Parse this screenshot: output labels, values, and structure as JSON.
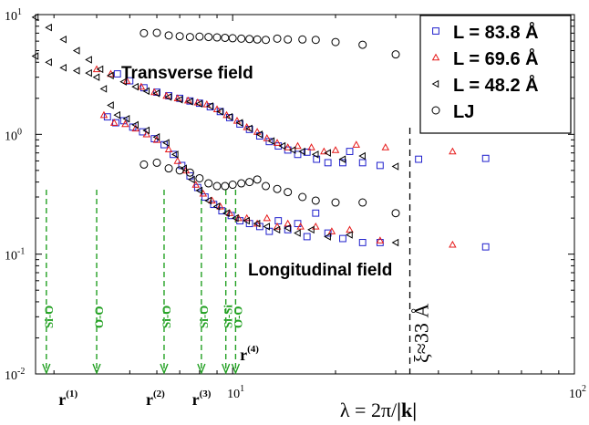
{
  "chart_data": {
    "type": "scatter",
    "x_scale": "log",
    "y_scale": "log",
    "xlim": [
      2.65,
      100
    ],
    "ylim": [
      0.01,
      10
    ],
    "grid": false,
    "legend_placement": "top-right",
    "xlabel_prefix": "λ = 2π/",
    "xlabel_bold": "|k|",
    "x_tick_labels": [
      {
        "value": 10,
        "mantissa": "10",
        "exp": "1"
      },
      {
        "value": 100,
        "mantissa": "10",
        "exp": "2"
      }
    ],
    "y_tick_labels": [
      {
        "value": 0.01,
        "mantissa": "10",
        "exp": "-2"
      },
      {
        "value": 0.1,
        "mantissa": "10",
        "exp": "-1"
      },
      {
        "value": 1,
        "mantissa": "10",
        "exp": "0"
      },
      {
        "value": 10,
        "mantissa": "10",
        "exp": "1"
      }
    ],
    "annotations": {
      "transverse": "Transverse field",
      "longitudinal": "Longitudinal field",
      "xi_label": "ξ≈33 Å",
      "xi_x": 33
    },
    "distance_markers": [
      {
        "label": "Si-O",
        "x": 2.85
      },
      {
        "label": "O-O",
        "x": 4.0
      },
      {
        "label": "Si-O",
        "x": 6.3
      },
      {
        "label": "Si-O",
        "x": 8.1
      },
      {
        "label": "Si-Si",
        "x": 9.55
      },
      {
        "label": "O-O",
        "x": 10.2
      }
    ],
    "r_labels": [
      {
        "base": "r",
        "sup": "(1)",
        "x": 3.5
      },
      {
        "base": "r",
        "sup": "(2)",
        "x": 6.3
      },
      {
        "base": "r",
        "sup": "(3)",
        "x": 8.6
      },
      {
        "base": "r",
        "sup": "(4)",
        "x": 10.5
      }
    ],
    "series": [
      {
        "name": "L = 83.8 Å",
        "marker": "square",
        "color": "#1f1fcc",
        "transverse": [
          [
            4.6,
            3.2
          ],
          [
            5.0,
            2.8
          ],
          [
            5.5,
            2.45
          ],
          [
            6.0,
            2.25
          ],
          [
            6.5,
            2.1
          ],
          [
            7.0,
            2.0
          ],
          [
            7.5,
            1.9
          ],
          [
            8.0,
            1.82
          ],
          [
            8.6,
            1.7
          ],
          [
            9.2,
            1.55
          ],
          [
            9.8,
            1.38
          ],
          [
            10.5,
            1.22
          ],
          [
            11.2,
            1.1
          ],
          [
            12.0,
            0.97
          ],
          [
            12.8,
            0.87
          ],
          [
            13.6,
            0.8
          ],
          [
            14.5,
            0.74
          ],
          [
            15.5,
            0.68
          ],
          [
            16.5,
            0.71
          ],
          [
            17.6,
            0.62
          ],
          [
            19.0,
            0.58
          ],
          [
            21.0,
            0.58
          ],
          [
            22.0,
            0.72
          ],
          [
            24.0,
            0.58
          ],
          [
            27.0,
            0.55
          ],
          [
            35.0,
            0.62
          ],
          [
            55.0,
            0.63
          ]
        ],
        "longitudinal": [
          [
            4.3,
            1.4
          ],
          [
            4.55,
            1.25
          ],
          [
            4.8,
            1.3
          ],
          [
            5.1,
            1.15
          ],
          [
            5.45,
            1.05
          ],
          [
            5.9,
            0.92
          ],
          [
            6.3,
            0.82
          ],
          [
            6.7,
            0.68
          ],
          [
            7.1,
            0.55
          ],
          [
            7.5,
            0.45
          ],
          [
            7.9,
            0.36
          ],
          [
            8.3,
            0.3
          ],
          [
            8.8,
            0.26
          ],
          [
            9.3,
            0.23
          ],
          [
            9.9,
            0.21
          ],
          [
            10.5,
            0.19
          ],
          [
            11.2,
            0.18
          ],
          [
            12.0,
            0.17
          ],
          [
            12.8,
            0.155
          ],
          [
            13.6,
            0.19
          ],
          [
            14.5,
            0.16
          ],
          [
            15.5,
            0.18
          ],
          [
            16.5,
            0.14
          ],
          [
            17.5,
            0.22
          ],
          [
            19.0,
            0.15
          ],
          [
            21.0,
            0.135
          ],
          [
            24.0,
            0.125
          ],
          [
            27.0,
            0.125
          ],
          [
            55.0,
            0.115
          ]
        ]
      },
      {
        "name": "L = 69.6 Å",
        "marker": "triangle-up",
        "color": "#e61a1a",
        "transverse": [
          [
            4.0,
            3.5
          ],
          [
            4.4,
            3.2
          ],
          [
            4.9,
            2.8
          ],
          [
            5.4,
            2.5
          ],
          [
            5.9,
            2.25
          ],
          [
            6.4,
            2.1
          ],
          [
            6.9,
            2.0
          ],
          [
            7.4,
            1.92
          ],
          [
            7.9,
            1.85
          ],
          [
            8.4,
            1.78
          ],
          [
            9.0,
            1.62
          ],
          [
            9.6,
            1.45
          ],
          [
            10.3,
            1.3
          ],
          [
            11.0,
            1.15
          ],
          [
            11.8,
            1.05
          ],
          [
            12.6,
            0.93
          ],
          [
            13.5,
            0.85
          ],
          [
            14.5,
            0.78
          ],
          [
            15.5,
            0.8
          ],
          [
            17.0,
            0.78
          ],
          [
            18.5,
            0.72
          ],
          [
            20.0,
            0.74
          ],
          [
            23.0,
            0.82
          ],
          [
            28.0,
            0.78
          ],
          [
            44.0,
            0.72
          ]
        ],
        "longitudinal": [
          [
            4.2,
            1.45
          ],
          [
            4.5,
            1.25
          ],
          [
            4.85,
            1.22
          ],
          [
            5.2,
            1.12
          ],
          [
            5.6,
            1.0
          ],
          [
            6.0,
            0.9
          ],
          [
            6.5,
            0.75
          ],
          [
            6.9,
            0.6
          ],
          [
            7.3,
            0.5
          ],
          [
            7.8,
            0.38
          ],
          [
            8.2,
            0.32
          ],
          [
            8.7,
            0.28
          ],
          [
            9.2,
            0.25
          ],
          [
            9.8,
            0.22
          ],
          [
            10.4,
            0.2
          ],
          [
            11.0,
            0.2
          ],
          [
            11.8,
            0.18
          ],
          [
            12.6,
            0.2
          ],
          [
            13.5,
            0.17
          ],
          [
            14.5,
            0.18
          ],
          [
            15.8,
            0.17
          ],
          [
            17.5,
            0.17
          ],
          [
            19.5,
            0.155
          ],
          [
            22.0,
            0.16
          ],
          [
            27.0,
            0.13
          ],
          [
            44.0,
            0.12
          ]
        ]
      },
      {
        "name": "L = 48.2 Å",
        "marker": "triangle-left",
        "color": "#000000",
        "transverse": [
          [
            2.65,
            9.5
          ],
          [
            2.9,
            7.8
          ],
          [
            3.2,
            6.2
          ],
          [
            3.5,
            5.0
          ],
          [
            3.8,
            4.2
          ],
          [
            4.1,
            3.5
          ],
          [
            4.4,
            3.1
          ],
          [
            4.8,
            2.75
          ],
          [
            5.2,
            2.5
          ],
          [
            5.6,
            2.3
          ],
          [
            6.0,
            2.2
          ],
          [
            6.5,
            2.05
          ],
          [
            7.0,
            1.95
          ],
          [
            7.5,
            1.88
          ],
          [
            8.0,
            1.8
          ],
          [
            8.6,
            1.72
          ],
          [
            9.2,
            1.55
          ],
          [
            9.8,
            1.4
          ],
          [
            10.5,
            1.25
          ],
          [
            11.2,
            1.12
          ],
          [
            12.0,
            1.0
          ],
          [
            13.0,
            0.88
          ],
          [
            14.0,
            0.8
          ],
          [
            15.0,
            0.74
          ],
          [
            16.0,
            0.72
          ],
          [
            17.5,
            0.68
          ],
          [
            19.0,
            0.7
          ],
          [
            21.0,
            0.62
          ],
          [
            24.0,
            0.66
          ],
          [
            30.0,
            0.54
          ]
        ],
        "longitudinal": [
          [
            2.65,
            4.5
          ],
          [
            2.9,
            4.0
          ],
          [
            3.2,
            3.6
          ],
          [
            3.5,
            3.4
          ],
          [
            3.8,
            3.25
          ],
          [
            4.0,
            3.0
          ],
          [
            4.2,
            2.4
          ],
          [
            4.4,
            1.75
          ],
          [
            4.6,
            1.45
          ],
          [
            4.9,
            1.35
          ],
          [
            5.2,
            1.2
          ],
          [
            5.6,
            1.08
          ],
          [
            6.0,
            0.95
          ],
          [
            6.4,
            0.85
          ],
          [
            6.8,
            0.68
          ],
          [
            7.2,
            0.52
          ],
          [
            7.6,
            0.42
          ],
          [
            8.0,
            0.34
          ],
          [
            8.5,
            0.28
          ],
          [
            9.0,
            0.25
          ],
          [
            9.6,
            0.22
          ],
          [
            10.2,
            0.2
          ],
          [
            11.0,
            0.19
          ],
          [
            11.8,
            0.18
          ],
          [
            12.6,
            0.17
          ],
          [
            13.5,
            0.16
          ],
          [
            14.5,
            0.165
          ],
          [
            15.5,
            0.15
          ],
          [
            17.0,
            0.16
          ],
          [
            19.0,
            0.14
          ],
          [
            22.0,
            0.145
          ],
          [
            30.0,
            0.125
          ]
        ]
      },
      {
        "name": "LJ",
        "marker": "circle",
        "color": "#000000",
        "transverse": [
          [
            5.5,
            7.0
          ],
          [
            6.0,
            7.05
          ],
          [
            6.5,
            6.7
          ],
          [
            7.0,
            6.6
          ],
          [
            7.5,
            6.5
          ],
          [
            8.0,
            6.55
          ],
          [
            8.5,
            6.5
          ],
          [
            9.0,
            6.45
          ],
          [
            9.5,
            6.4
          ],
          [
            10.0,
            6.35
          ],
          [
            10.6,
            6.3
          ],
          [
            11.2,
            6.25
          ],
          [
            11.8,
            6.2
          ],
          [
            12.5,
            6.15
          ],
          [
            13.5,
            6.3
          ],
          [
            14.5,
            6.2
          ],
          [
            16.0,
            6.2
          ],
          [
            17.5,
            6.15
          ],
          [
            20.0,
            5.9
          ],
          [
            24.0,
            5.6
          ],
          [
            30.0,
            4.65
          ]
        ],
        "longitudinal": [
          [
            5.5,
            0.56
          ],
          [
            6.0,
            0.58
          ],
          [
            6.5,
            0.52
          ],
          [
            7.0,
            0.5
          ],
          [
            7.5,
            0.48
          ],
          [
            8.0,
            0.43
          ],
          [
            8.5,
            0.39
          ],
          [
            9.0,
            0.37
          ],
          [
            9.5,
            0.37
          ],
          [
            10.0,
            0.38
          ],
          [
            10.6,
            0.39
          ],
          [
            11.2,
            0.4
          ],
          [
            11.8,
            0.42
          ],
          [
            12.5,
            0.37
          ],
          [
            13.5,
            0.35
          ],
          [
            14.5,
            0.33
          ],
          [
            16.0,
            0.3
          ],
          [
            17.5,
            0.28
          ],
          [
            20.0,
            0.27
          ],
          [
            24.0,
            0.27
          ],
          [
            30.0,
            0.22
          ]
        ]
      }
    ]
  }
}
